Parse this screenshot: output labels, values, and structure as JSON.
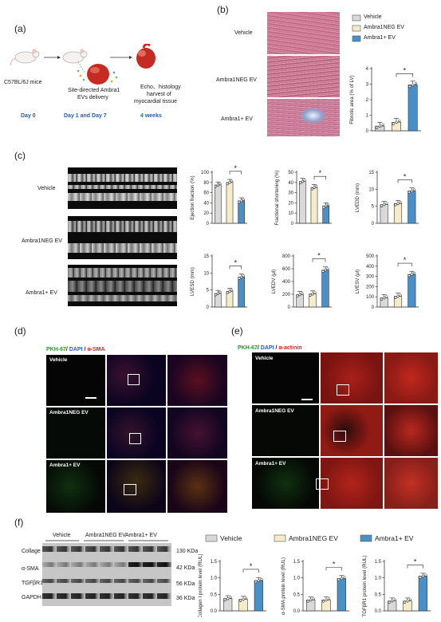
{
  "colors": {
    "vehicle": "#d9d9d9",
    "neg": "#f5ecc8",
    "plus": "#4a90c8",
    "pkh": "#19a319",
    "dapi": "#1f5fd8",
    "red": "#e0211b"
  },
  "a": {
    "label": "(a)",
    "mice": "C57BL/6J mice",
    "delivery": [
      "Site-directed Ambra1",
      "EVs delivery"
    ],
    "echo": [
      "Echo、histology",
      "harvest of",
      "myocardial tissue"
    ],
    "days": [
      "Day 0",
      "Day 1 and Day 7",
      "4 weeks"
    ]
  },
  "b": {
    "label": "(b)",
    "rows": [
      "Vehicle",
      "Ambra1NEG EV",
      "Ambra1+ EV"
    ],
    "legend": [
      "Vehicle",
      "Ambra1NEG EV",
      "Ambra1+ EV"
    ],
    "chart_data": {
      "type": "bar",
      "ylabel": "Fibrotic area (% of LV)",
      "yticks": [
        "0",
        "1",
        "2",
        "3",
        "4"
      ],
      "ylim": [
        0,
        4
      ],
      "values": [
        0.3,
        0.55,
        2.95
      ],
      "sig": "*"
    }
  },
  "c": {
    "label": "(c)",
    "rows": [
      "Vehicle",
      "Ambra1NEG EV",
      "Ambra1+ EV"
    ],
    "chart_data": [
      {
        "type": "bar",
        "ylabel": "Ejection fraction (%)",
        "yticks": [
          "0",
          "20",
          "40",
          "60",
          "80",
          "100"
        ],
        "ylim": [
          0,
          100
        ],
        "values": [
          75,
          80,
          44
        ],
        "sig": "*"
      },
      {
        "type": "bar",
        "ylabel": "Fractional shortening (%)",
        "yticks": [
          "0",
          "10",
          "20",
          "30",
          "40",
          "50"
        ],
        "ylim": [
          0,
          50
        ],
        "values": [
          41,
          35,
          17
        ],
        "sig": "*"
      },
      {
        "type": "bar",
        "ylabel": "LVEDD (mm)",
        "yticks": [
          "0",
          "5",
          "10",
          "15"
        ],
        "ylim": [
          0,
          15
        ],
        "values": [
          5.5,
          5.8,
          9.5
        ],
        "sig": "*"
      },
      {
        "type": "bar",
        "ylabel": "LVESD (mm)",
        "yticks": [
          "0",
          "5",
          "10",
          "15"
        ],
        "ylim": [
          0,
          15
        ],
        "values": [
          4.0,
          4.6,
          8.8
        ],
        "sig": "*"
      },
      {
        "type": "bar",
        "ylabel": "LVEDV (μl)",
        "yticks": [
          "0",
          "200",
          "400",
          "600",
          "800"
        ],
        "ylim": [
          0,
          800
        ],
        "values": [
          195,
          205,
          580
        ],
        "sig": "*"
      },
      {
        "type": "bar",
        "ylabel": "LVESV (μl)",
        "yticks": [
          "0",
          "100",
          "200",
          "300",
          "400",
          "500"
        ],
        "ylim": [
          0,
          500
        ],
        "values": [
          90,
          105,
          320
        ],
        "sig": "*"
      }
    ]
  },
  "d": {
    "label": "(d)",
    "title": [
      "PKH-67",
      "/ ",
      "DAPI",
      " / ",
      "α-SMA"
    ],
    "rows": [
      "Vehicle",
      "Ambra1NEG EV",
      "Ambra1+ EV"
    ]
  },
  "e": {
    "label": "(e)",
    "title": [
      "PKH-67",
      "/ ",
      "DAPI",
      " / ",
      "α-actinin"
    ],
    "rows": [
      "Vehicle",
      "Ambra1NEG EV",
      "Ambra1+ EV"
    ]
  },
  "f": {
    "label": "(f)",
    "groups": [
      "Vehicle",
      "Ambra1NEG EV",
      "Ambra1+ EV"
    ],
    "proteins": [
      "Collage I",
      "α-SMA",
      "TGFβR1",
      "GAPDH"
    ],
    "kda": [
      "130 KDa",
      "42 KDa",
      "56 KDa",
      "36 KDa"
    ],
    "legend": [
      "Vehicle",
      "Ambra1NEG EV",
      "Ambra1+ EV"
    ],
    "chart_data": [
      {
        "type": "bar",
        "ylabel": "Collagen I protein level (RUL)",
        "yticks": [
          "0.0",
          "0.5",
          "1.0",
          "1.5"
        ],
        "ylim": [
          0,
          1.5
        ],
        "values": [
          0.37,
          0.35,
          0.92
        ],
        "sig": "*"
      },
      {
        "type": "bar",
        "ylabel": "α-SMA protein level (RUL)",
        "yticks": [
          "0.0",
          "0.5",
          "1.0",
          "1.5"
        ],
        "ylim": [
          0,
          1.5
        ],
        "values": [
          0.33,
          0.33,
          0.98
        ],
        "sig": "*"
      },
      {
        "type": "bar",
        "ylabel": "TGFβR1 protein level (RUL)",
        "yticks": [
          "0.0",
          "0.5",
          "1.0",
          "1.5"
        ],
        "ylim": [
          0,
          1.5
        ],
        "values": [
          0.3,
          0.3,
          1.05
        ],
        "sig": "*"
      }
    ]
  }
}
